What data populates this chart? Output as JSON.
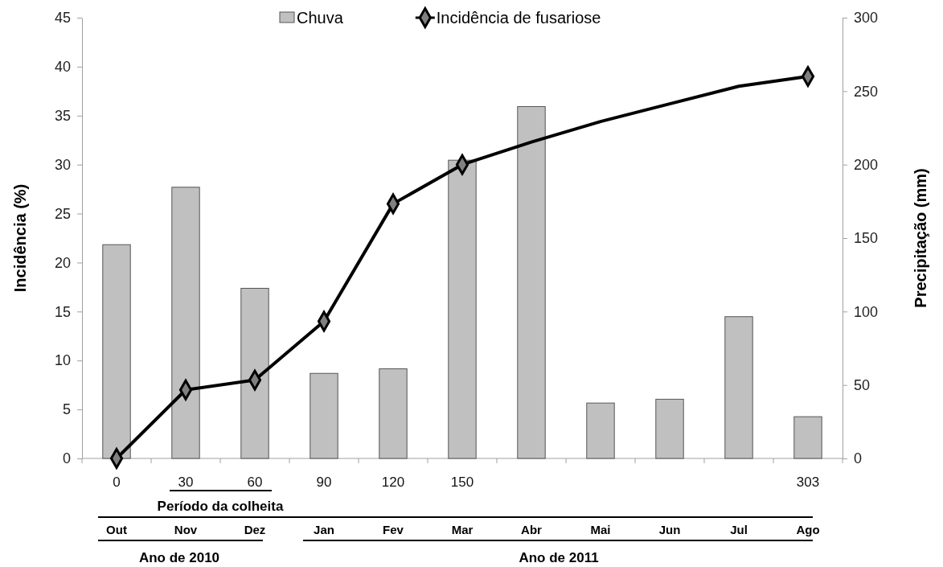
{
  "chart_data": {
    "type": "bar",
    "ylabel": "Incidência (%)",
    "y2label": "Precipitação (mm)",
    "categories": [
      "0",
      "30",
      "60",
      "90",
      "120",
      "150",
      null,
      null,
      null,
      null,
      "303"
    ],
    "series": [
      {
        "name": "Chuva",
        "axis": "y2",
        "color": "#c0c0c0",
        "values": [
          145.5,
          184.6,
          115.8,
          57.9,
          61,
          203,
          239.5,
          37.7,
          40.3,
          96.5,
          28.4
        ]
      },
      {
        "type": "line",
        "color": "#000000",
        "marker": "none",
        "values": [
          0,
          7,
          8,
          14,
          26,
          30,
          32.3,
          34.4,
          36.2,
          38,
          39
        ]
      },
      {
        "name": "Incidência de fusariose",
        "type": "scatter",
        "color": "#808080",
        "marker": "diamond",
        "values": [
          0,
          7,
          8,
          14,
          26,
          30,
          null,
          null,
          null,
          null,
          39
        ]
      }
    ],
    "ylim": [
      0,
      45
    ],
    "yticks": [
      0,
      5,
      10,
      15,
      20,
      25,
      30,
      35,
      40,
      45
    ],
    "y2lim": [
      0,
      300
    ],
    "y2ticks": [
      0,
      50,
      100,
      150,
      200,
      250,
      300
    ],
    "legend": "top",
    "annotations": [
      "Período da colheita",
      "Out",
      "Nov",
      "Dez",
      "Jan",
      "Fev",
      "Mar",
      "Abr",
      "Mai",
      "Jun",
      "Jul",
      "Ago",
      "Ano de 2010",
      "Ano de 2011"
    ]
  }
}
